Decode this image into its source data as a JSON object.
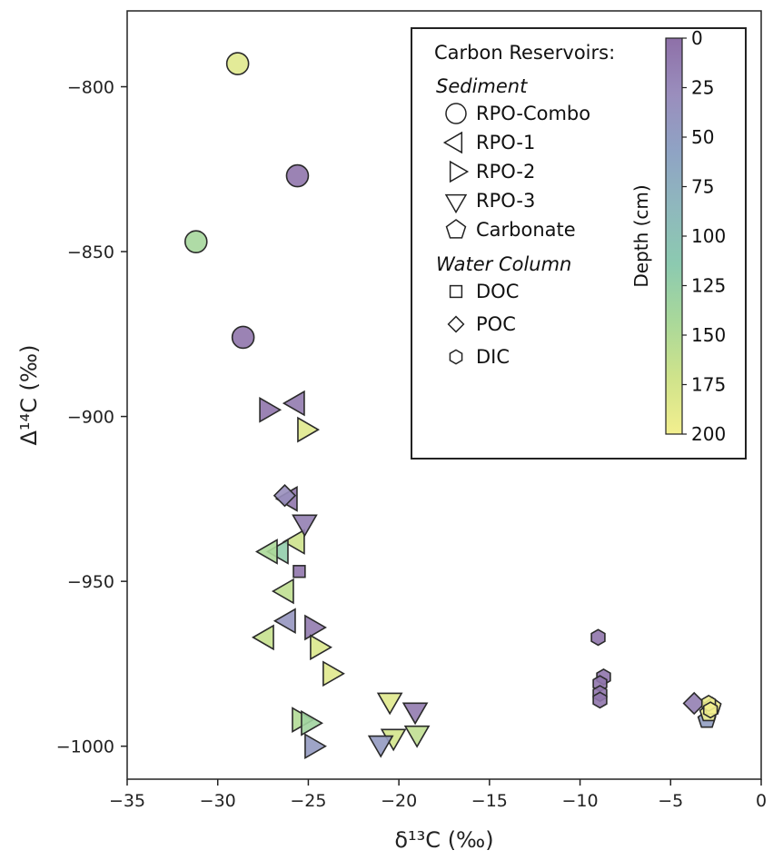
{
  "chart_data": {
    "type": "scatter",
    "xlabel": "δ¹³C (‰)",
    "ylabel": "Δ¹⁴C (‰)",
    "xlim": [
      -35,
      0
    ],
    "ylim": [
      -1010,
      -777
    ],
    "xticks": [
      -35,
      -30,
      -25,
      -20,
      -15,
      -10,
      -5,
      0
    ],
    "yticks": [
      -1000,
      -950,
      -900,
      -850,
      -800
    ],
    "grid": false,
    "legend": {
      "placement": "top-right",
      "heading": "Carbon Reservoirs:",
      "groups": [
        {
          "label": "Sediment",
          "items": [
            {
              "marker": "circle",
              "label": "RPO-Combo"
            },
            {
              "marker": "triangle-left",
              "label": "RPO-1"
            },
            {
              "marker": "triangle-right",
              "label": "RPO-2"
            },
            {
              "marker": "triangle-down",
              "label": "RPO-3"
            },
            {
              "marker": "pentagon",
              "label": "Carbonate"
            }
          ]
        },
        {
          "label": "Water Column",
          "items": [
            {
              "marker": "square",
              "label": "DOC"
            },
            {
              "marker": "diamond",
              "label": "POC"
            },
            {
              "marker": "hexagon",
              "label": "DIC"
            }
          ]
        }
      ]
    },
    "colorbar": {
      "label": "Depth (cm)",
      "range": [
        0,
        200
      ],
      "ticks": [
        0,
        25,
        50,
        75,
        100,
        125,
        150,
        175,
        200
      ],
      "colormap": [
        "#8e70a8",
        "#9a8ebd",
        "#8fa3c4",
        "#8fb8bd",
        "#8ccab0",
        "#a9d89a",
        "#cfe38b",
        "#f3ef8f"
      ]
    },
    "series": [
      {
        "marker": "circle",
        "label": "RPO-Combo",
        "points": [
          {
            "x": -28.9,
            "y": -793,
            "depth": 185
          },
          {
            "x": -25.6,
            "y": -827,
            "depth": 5
          },
          {
            "x": -31.2,
            "y": -847,
            "depth": 140
          },
          {
            "x": -28.6,
            "y": -876,
            "depth": 5
          }
        ]
      },
      {
        "marker": "triangle-left",
        "label": "RPO-1",
        "points": [
          {
            "x": -25.6,
            "y": -896,
            "depth": 10
          },
          {
            "x": -26.0,
            "y": -925,
            "depth": 5
          },
          {
            "x": -25.6,
            "y": -938,
            "depth": 170
          },
          {
            "x": -26.5,
            "y": -941,
            "depth": 120
          },
          {
            "x": -27.1,
            "y": -941,
            "depth": 145
          },
          {
            "x": -26.2,
            "y": -953,
            "depth": 160
          },
          {
            "x": -26.1,
            "y": -962,
            "depth": 40
          },
          {
            "x": -27.3,
            "y": -967,
            "depth": 165
          }
        ]
      },
      {
        "marker": "triangle-right",
        "label": "RPO-2",
        "points": [
          {
            "x": -27.3,
            "y": -898,
            "depth": 5
          },
          {
            "x": -25.2,
            "y": -904,
            "depth": 185
          },
          {
            "x": -24.8,
            "y": -964,
            "depth": 10
          },
          {
            "x": -24.5,
            "y": -970,
            "depth": 180
          },
          {
            "x": -23.8,
            "y": -978,
            "depth": 185
          },
          {
            "x": -25.5,
            "y": -992,
            "depth": 150
          },
          {
            "x": -25.0,
            "y": -993,
            "depth": 135
          },
          {
            "x": -24.8,
            "y": -1000,
            "depth": 45
          }
        ]
      },
      {
        "marker": "triangle-down",
        "label": "RPO-3",
        "points": [
          {
            "x": -25.2,
            "y": -932,
            "depth": 15
          },
          {
            "x": -20.5,
            "y": -986,
            "depth": 185
          },
          {
            "x": -19.1,
            "y": -989,
            "depth": 10
          },
          {
            "x": -20.3,
            "y": -997,
            "depth": 175
          },
          {
            "x": -19.0,
            "y": -996,
            "depth": 160
          },
          {
            "x": -21.0,
            "y": -999,
            "depth": 45
          }
        ]
      },
      {
        "marker": "square",
        "label": "DOC",
        "points": [
          {
            "x": -25.5,
            "y": -947,
            "depth": 5
          }
        ]
      },
      {
        "marker": "diamond",
        "label": "POC",
        "points": [
          {
            "x": -26.3,
            "y": -924,
            "depth": 30
          },
          {
            "x": -3.7,
            "y": -987,
            "depth": 15
          }
        ]
      },
      {
        "marker": "pentagon",
        "label": "Carbonate",
        "points": [
          {
            "x": -3.0,
            "y": -992,
            "depth": 50
          },
          {
            "x": -2.9,
            "y": -990,
            "depth": 195
          },
          {
            "x": -2.7,
            "y": -988,
            "depth": 200
          }
        ]
      },
      {
        "marker": "hexagon",
        "label": "DIC",
        "points": [
          {
            "x": -9.0,
            "y": -967,
            "depth": 5
          },
          {
            "x": -8.7,
            "y": -979,
            "depth": 5
          },
          {
            "x": -8.9,
            "y": -981,
            "depth": 5
          },
          {
            "x": -8.9,
            "y": -984,
            "depth": 5
          },
          {
            "x": -8.9,
            "y": -986,
            "depth": 5
          },
          {
            "x": -2.9,
            "y": -987,
            "depth": 195
          },
          {
            "x": -2.8,
            "y": -989,
            "depth": 200
          }
        ]
      }
    ]
  }
}
